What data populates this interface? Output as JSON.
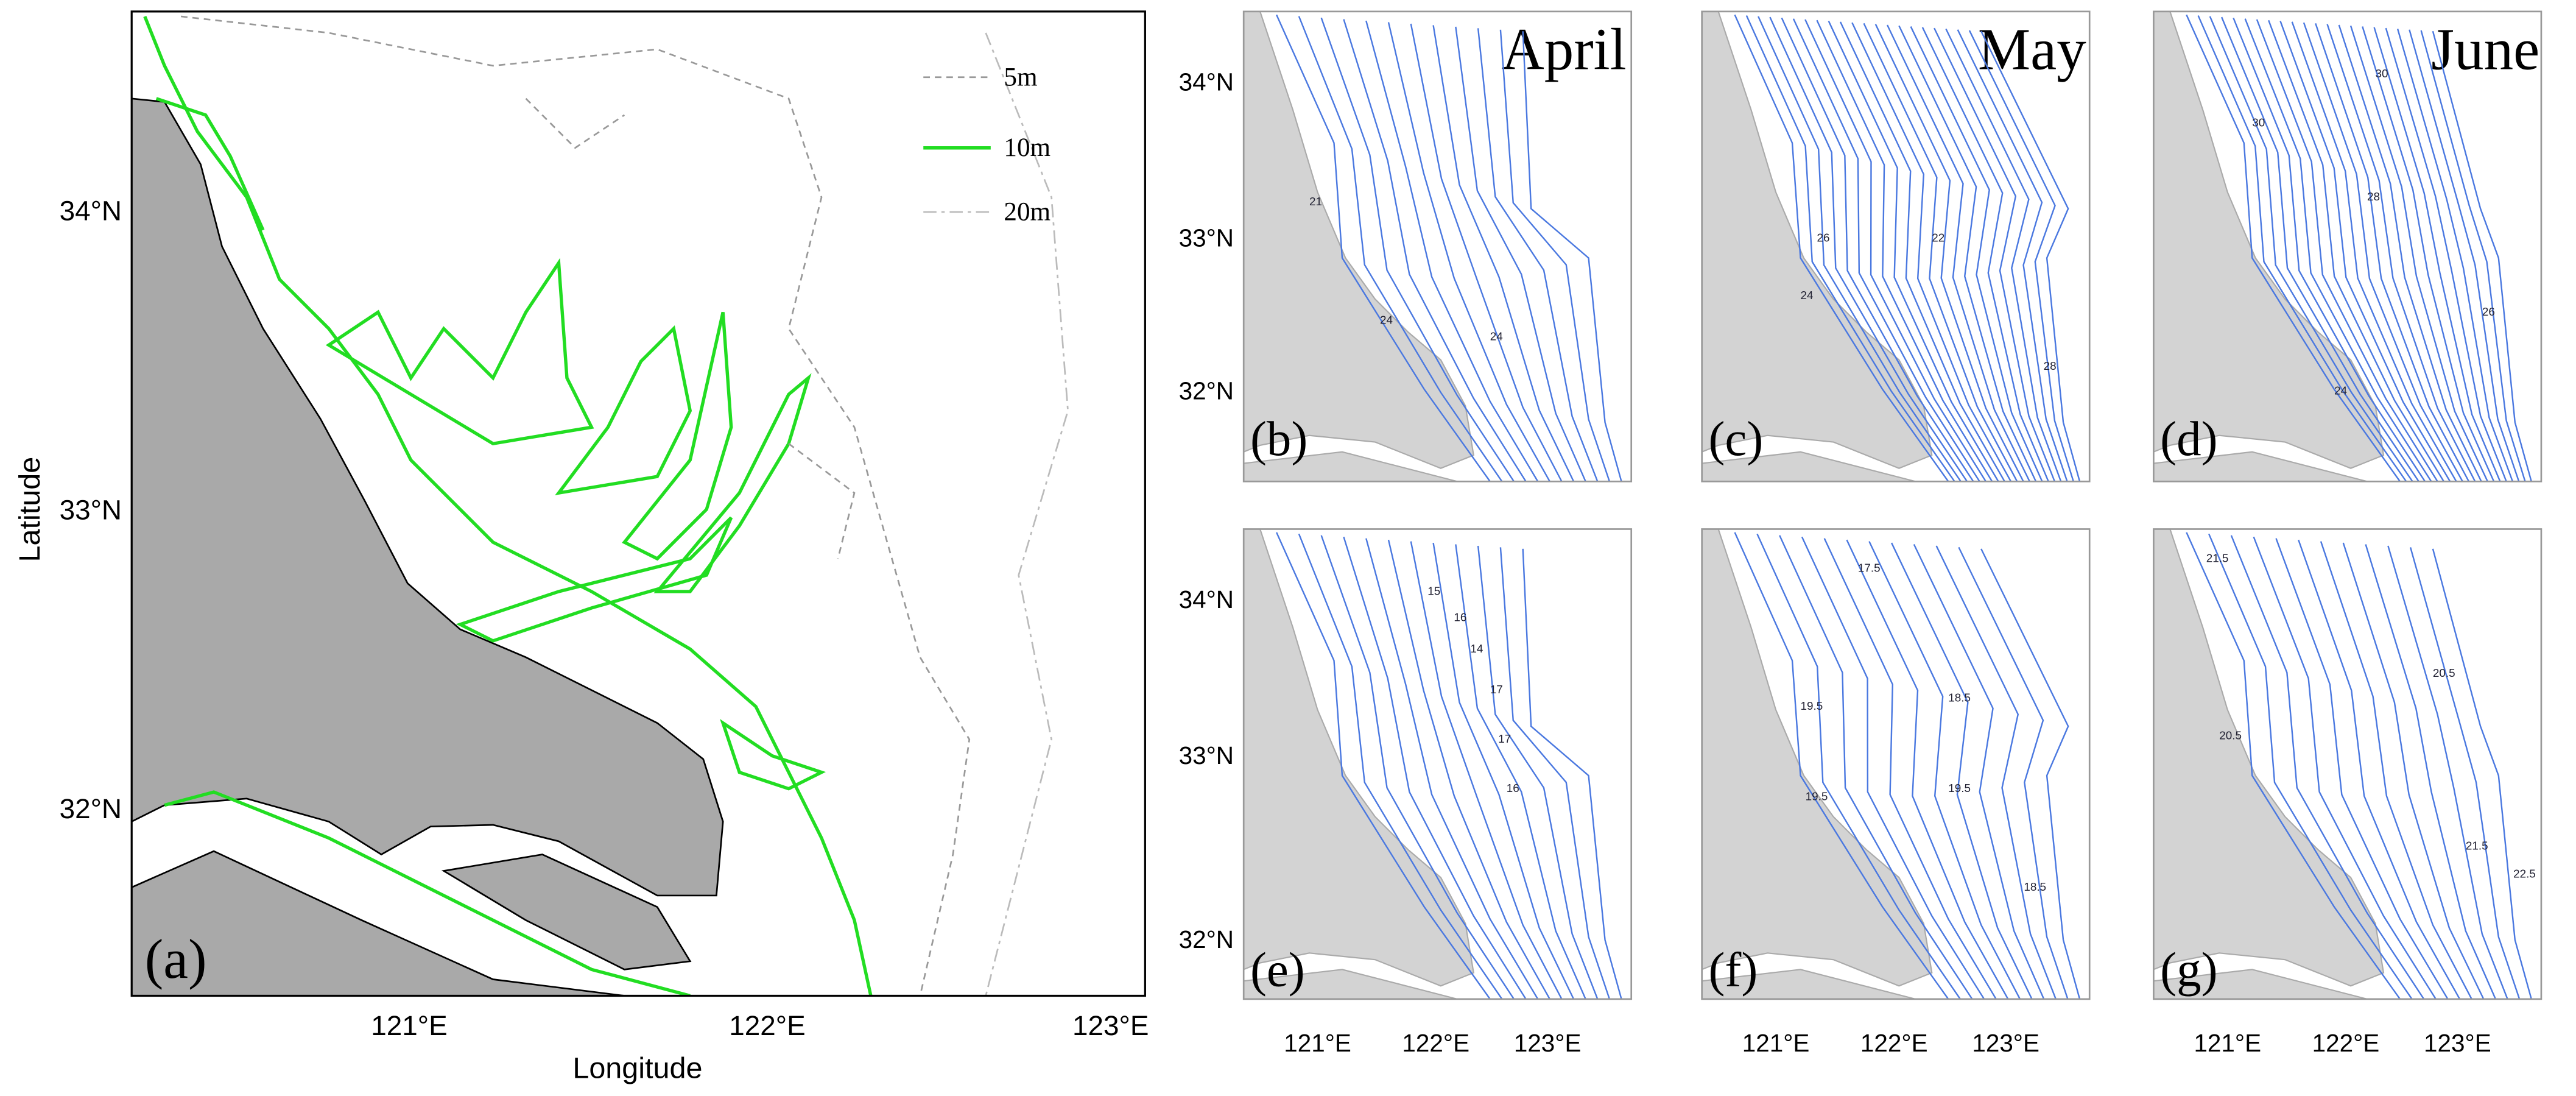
{
  "main_map": {
    "panel_label": "(a)",
    "x_axis_label": "Longitude",
    "y_axis_label": "Latitude",
    "xticks": [
      "121°E",
      "122°E",
      "123°E"
    ],
    "yticks": [
      "34°N",
      "33°N",
      "32°N"
    ],
    "legend": [
      "5m",
      "10m",
      "20m"
    ]
  },
  "month_headers": [
    "April",
    "May",
    "June"
  ],
  "small_xticks": [
    "121°E",
    "122°E",
    "123°E"
  ],
  "small_yticks": [
    "34°N",
    "33°N",
    "32°N"
  ],
  "small_panels": [
    {
      "label": "(b)",
      "contour_labels": [
        "21",
        "24",
        "24"
      ]
    },
    {
      "label": "(c)",
      "contour_labels": [
        "26",
        "24",
        "22",
        "28"
      ]
    },
    {
      "label": "(d)",
      "contour_labels": [
        "30",
        "30",
        "28",
        "26",
        "24"
      ]
    },
    {
      "label": "(e)",
      "contour_labels": [
        "15",
        "16",
        "14",
        "17",
        "17",
        "16"
      ]
    },
    {
      "label": "(f)",
      "contour_labels": [
        "17.5",
        "19.5",
        "19.5",
        "18.5",
        "19.5",
        "18.5"
      ]
    },
    {
      "label": "(g)",
      "contour_labels": [
        "21.5",
        "20.5",
        "20.5",
        "21.5",
        "22.5"
      ]
    }
  ]
}
